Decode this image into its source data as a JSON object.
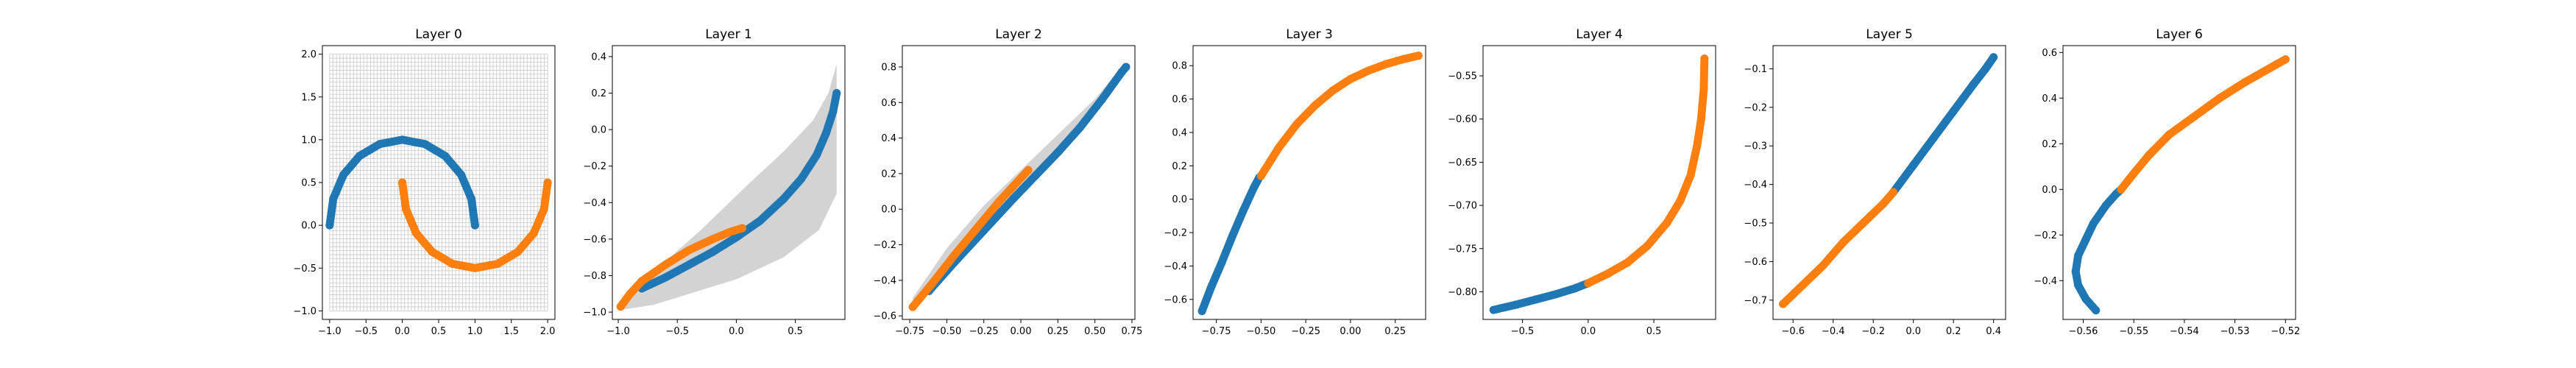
{
  "colors": {
    "class_a": "#1f77b4",
    "class_b": "#ff7f0e",
    "band": "#d3d3d3",
    "grid": "#c8c8c8"
  },
  "chart_data": [
    {
      "type": "scatter",
      "title": "Layer 0",
      "xlim": [
        -1.1,
        2.1
      ],
      "ylim": [
        -1.1,
        2.1
      ],
      "xticks": [
        "-1.0",
        "-0.5",
        "0.0",
        "0.5",
        "1.0",
        "1.5",
        "2.0"
      ],
      "yticks": [
        "-1.0",
        "-0.5",
        "0.0",
        "0.5",
        "1.0",
        "1.5",
        "2.0"
      ],
      "grid": true,
      "series": [
        {
          "color": "#1f77b4",
          "points": [
            [
              -1.0,
              0.0
            ],
            [
              -0.95,
              0.31
            ],
            [
              -0.81,
              0.59
            ],
            [
              -0.59,
              0.81
            ],
            [
              -0.31,
              0.95
            ],
            [
              0.0,
              1.0
            ],
            [
              0.31,
              0.95
            ],
            [
              0.59,
              0.81
            ],
            [
              0.81,
              0.59
            ],
            [
              0.95,
              0.31
            ],
            [
              1.0,
              0.0
            ]
          ]
        },
        {
          "color": "#ff7f0e",
          "points": [
            [
              0.0,
              0.5
            ],
            [
              0.05,
              0.19
            ],
            [
              0.19,
              -0.09
            ],
            [
              0.41,
              -0.31
            ],
            [
              0.69,
              -0.45
            ],
            [
              1.0,
              -0.5
            ],
            [
              1.31,
              -0.45
            ],
            [
              1.59,
              -0.31
            ],
            [
              1.81,
              -0.09
            ],
            [
              1.95,
              0.19
            ],
            [
              2.0,
              0.5
            ]
          ]
        }
      ]
    },
    {
      "type": "scatter",
      "title": "Layer 1",
      "xlim": [
        -1.05,
        0.92
      ],
      "ylim": [
        -1.04,
        0.46
      ],
      "xticks": [
        "-1.0",
        "-0.5",
        "0.0",
        "0.5"
      ],
      "yticks": [
        "-1.0",
        "-0.8",
        "-0.6",
        "-0.4",
        "-0.2",
        "0.0",
        "0.2",
        "0.4"
      ],
      "band": {
        "upper": [
          [
            -1.0,
            -0.97
          ],
          [
            -0.7,
            -0.78
          ],
          [
            -0.3,
            -0.55
          ],
          [
            0.1,
            -0.3
          ],
          [
            0.4,
            -0.12
          ],
          [
            0.65,
            0.05
          ],
          [
            0.78,
            0.2
          ],
          [
            0.85,
            0.36
          ]
        ],
        "lower": [
          [
            0.85,
            -0.35
          ],
          [
            0.7,
            -0.55
          ],
          [
            0.4,
            -0.7
          ],
          [
            0.0,
            -0.82
          ],
          [
            -0.4,
            -0.9
          ],
          [
            -0.7,
            -0.96
          ],
          [
            -1.0,
            -0.99
          ]
        ]
      },
      "series": [
        {
          "color": "#1f77b4",
          "points": [
            [
              -0.8,
              -0.87
            ],
            [
              -0.6,
              -0.81
            ],
            [
              -0.4,
              -0.74
            ],
            [
              -0.2,
              -0.67
            ],
            [
              0.0,
              -0.59
            ],
            [
              0.2,
              -0.5
            ],
            [
              0.4,
              -0.38
            ],
            [
              0.55,
              -0.27
            ],
            [
              0.68,
              -0.14
            ],
            [
              0.76,
              -0.02
            ],
            [
              0.82,
              0.1
            ],
            [
              0.85,
              0.2
            ]
          ]
        },
        {
          "color": "#ff7f0e",
          "points": [
            [
              -0.98,
              -0.97
            ],
            [
              -0.9,
              -0.9
            ],
            [
              -0.8,
              -0.83
            ],
            [
              -0.6,
              -0.74
            ],
            [
              -0.4,
              -0.66
            ],
            [
              -0.2,
              -0.6
            ],
            [
              -0.05,
              -0.56
            ],
            [
              0.05,
              -0.54
            ]
          ]
        }
      ]
    },
    {
      "type": "scatter",
      "title": "Layer 2",
      "xlim": [
        -0.8,
        0.77
      ],
      "ylim": [
        -0.62,
        0.92
      ],
      "xticks": [
        "-0.75",
        "-0.50",
        "-0.25",
        "0.00",
        "0.25",
        "0.50",
        "0.75"
      ],
      "yticks": [
        "-0.6",
        "-0.4",
        "-0.2",
        "0.0",
        "0.2",
        "0.4",
        "0.6",
        "0.8"
      ],
      "band": {
        "upper": [
          [
            -0.73,
            -0.5
          ],
          [
            -0.5,
            -0.22
          ],
          [
            -0.25,
            0.02
          ],
          [
            0.0,
            0.22
          ],
          [
            0.25,
            0.42
          ],
          [
            0.5,
            0.62
          ],
          [
            0.7,
            0.82
          ]
        ],
        "lower": [
          [
            0.7,
            0.77
          ],
          [
            0.5,
            0.55
          ],
          [
            0.25,
            0.33
          ],
          [
            0.0,
            0.12
          ],
          [
            -0.25,
            -0.08
          ],
          [
            -0.5,
            -0.3
          ],
          [
            -0.73,
            -0.55
          ]
        ]
      },
      "series": [
        {
          "color": "#1f77b4",
          "points": [
            [
              -0.62,
              -0.46
            ],
            [
              -0.45,
              -0.3
            ],
            [
              -0.25,
              -0.12
            ],
            [
              -0.05,
              0.06
            ],
            [
              0.1,
              0.19
            ],
            [
              0.25,
              0.32
            ],
            [
              0.4,
              0.46
            ],
            [
              0.55,
              0.62
            ],
            [
              0.68,
              0.77
            ],
            [
              0.71,
              0.8
            ]
          ]
        },
        {
          "color": "#ff7f0e",
          "points": [
            [
              -0.73,
              -0.55
            ],
            [
              -0.6,
              -0.42
            ],
            [
              -0.45,
              -0.26
            ],
            [
              -0.3,
              -0.11
            ],
            [
              -0.15,
              0.04
            ],
            [
              -0.05,
              0.13
            ],
            [
              0.05,
              0.22
            ]
          ]
        }
      ]
    },
    {
      "type": "scatter",
      "title": "Layer 3",
      "xlim": [
        -0.88,
        0.42
      ],
      "ylim": [
        -0.72,
        0.92
      ],
      "xticks": [
        "-0.75",
        "-0.50",
        "-0.25",
        "0.00",
        "0.25"
      ],
      "yticks": [
        "-0.6",
        "-0.4",
        "-0.2",
        "0.0",
        "0.2",
        "0.4",
        "0.6",
        "0.8"
      ],
      "series": [
        {
          "color": "#1f77b4",
          "points": [
            [
              -0.83,
              -0.67
            ],
            [
              -0.78,
              -0.53
            ],
            [
              -0.72,
              -0.38
            ],
            [
              -0.66,
              -0.22
            ],
            [
              -0.6,
              -0.07
            ],
            [
              -0.54,
              0.07
            ],
            [
              -0.51,
              0.13
            ]
          ]
        },
        {
          "color": "#ff7f0e",
          "points": [
            [
              -0.5,
              0.14
            ],
            [
              -0.4,
              0.31
            ],
            [
              -0.3,
              0.45
            ],
            [
              -0.2,
              0.56
            ],
            [
              -0.1,
              0.65
            ],
            [
              0.0,
              0.72
            ],
            [
              0.1,
              0.77
            ],
            [
              0.2,
              0.81
            ],
            [
              0.3,
              0.84
            ],
            [
              0.38,
              0.86
            ]
          ]
        }
      ]
    },
    {
      "type": "scatter",
      "title": "Layer 4",
      "xlim": [
        -0.8,
        0.97
      ],
      "ylim": [
        -0.832,
        -0.515
      ],
      "xticks": [
        "-0.5",
        "0.0",
        "0.5"
      ],
      "yticks": [
        "-0.80",
        "-0.75",
        "-0.70",
        "-0.65",
        "-0.60",
        "-0.55"
      ],
      "series": [
        {
          "color": "#1f77b4",
          "points": [
            [
              -0.72,
              -0.821
            ],
            [
              -0.55,
              -0.815
            ],
            [
              -0.4,
              -0.809
            ],
            [
              -0.25,
              -0.803
            ],
            [
              -0.1,
              -0.796
            ],
            [
              0.0,
              -0.79
            ]
          ]
        },
        {
          "color": "#ff7f0e",
          "points": [
            [
              0.0,
              -0.79
            ],
            [
              0.15,
              -0.779
            ],
            [
              0.3,
              -0.766
            ],
            [
              0.45,
              -0.747
            ],
            [
              0.6,
              -0.72
            ],
            [
              0.7,
              -0.695
            ],
            [
              0.78,
              -0.665
            ],
            [
              0.83,
              -0.63
            ],
            [
              0.86,
              -0.6
            ],
            [
              0.88,
              -0.565
            ],
            [
              0.885,
              -0.53
            ]
          ]
        }
      ]
    },
    {
      "type": "scatter",
      "title": "Layer 5",
      "xlim": [
        -0.7,
        0.46
      ],
      "ylim": [
        -0.75,
        -0.04
      ],
      "xticks": [
        "-0.6",
        "-0.4",
        "-0.2",
        "0.0",
        "0.2",
        "0.4"
      ],
      "yticks": [
        "-0.7",
        "-0.6",
        "-0.5",
        "-0.4",
        "-0.3",
        "-0.2",
        "-0.1"
      ],
      "series": [
        {
          "color": "#1f77b4",
          "points": [
            [
              -0.1,
              -0.42
            ],
            [
              0.0,
              -0.35
            ],
            [
              0.1,
              -0.28
            ],
            [
              0.2,
              -0.21
            ],
            [
              0.3,
              -0.14
            ],
            [
              0.36,
              -0.1
            ],
            [
              0.4,
              -0.07
            ]
          ]
        },
        {
          "color": "#ff7f0e",
          "points": [
            [
              -0.65,
              -0.71
            ],
            [
              -0.55,
              -0.66
            ],
            [
              -0.45,
              -0.61
            ],
            [
              -0.35,
              -0.55
            ],
            [
              -0.25,
              -0.5
            ],
            [
              -0.15,
              -0.45
            ],
            [
              -0.1,
              -0.42
            ]
          ]
        }
      ]
    },
    {
      "type": "scatter",
      "title": "Layer 6",
      "xlim": [
        -0.564,
        -0.518
      ],
      "ylim": [
        -0.57,
        0.63
      ],
      "xticks": [
        "-0.56",
        "-0.55",
        "-0.54",
        "-0.53",
        "-0.52"
      ],
      "yticks": [
        "-0.4",
        "-0.2",
        "0.0",
        "0.2",
        "0.4",
        "0.6"
      ],
      "series": [
        {
          "color": "#1f77b4",
          "points": [
            [
              -0.5575,
              -0.53
            ],
            [
              -0.5595,
              -0.48
            ],
            [
              -0.561,
              -0.42
            ],
            [
              -0.5615,
              -0.36
            ],
            [
              -0.561,
              -0.29
            ],
            [
              -0.5595,
              -0.22
            ],
            [
              -0.558,
              -0.15
            ],
            [
              -0.5555,
              -0.07
            ],
            [
              -0.5535,
              -0.02
            ],
            [
              -0.5525,
              0.0
            ]
          ]
        },
        {
          "color": "#ff7f0e",
          "points": [
            [
              -0.5525,
              0.0
            ],
            [
              -0.55,
              0.07
            ],
            [
              -0.547,
              0.15
            ],
            [
              -0.543,
              0.24
            ],
            [
              -0.538,
              0.32
            ],
            [
              -0.533,
              0.4
            ],
            [
              -0.528,
              0.47
            ],
            [
              -0.524,
              0.52
            ],
            [
              -0.52,
              0.57
            ]
          ]
        }
      ]
    }
  ]
}
